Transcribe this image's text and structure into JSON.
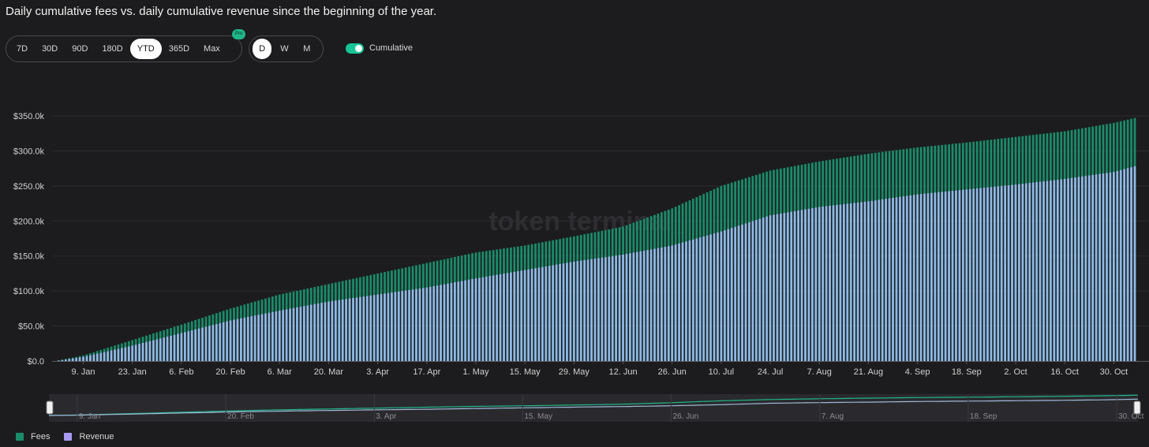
{
  "title": "Daily cumulative fees vs. daily cumulative revenue since the beginning of the year.",
  "controls": {
    "ranges": [
      "7D",
      "30D",
      "90D",
      "180D",
      "YTD",
      "365D",
      "Max"
    ],
    "active_range": "YTD",
    "pro_badge": "Pro",
    "intervals": [
      "D",
      "W",
      "M"
    ],
    "active_interval": "D",
    "cumulative_label": "Cumulative",
    "cumulative_on": true
  },
  "watermark": "token terminal_",
  "colors": {
    "fees": "#1a8c6a",
    "revenue": "#8fb8e6",
    "legend_revenue": "#a89af0",
    "grid": "#2d2d31",
    "navigator_fees": "#1fb589",
    "navigator_revenue": "#9fb8d8"
  },
  "chart_data": {
    "type": "bar",
    "stacked": false,
    "x_type": "date",
    "x_start": "2023-01-01",
    "x_end": "2023-11-05",
    "xlim": [
      "2023-01-01",
      "2023-11-05"
    ],
    "ylim": [
      0,
      350000
    ],
    "y_ticks": [
      0,
      50000,
      100000,
      150000,
      200000,
      250000,
      300000,
      350000
    ],
    "y_tick_labels": [
      "$0.0",
      "$50.0k",
      "$100.0k",
      "$150.0k",
      "$200.0k",
      "$250.0k",
      "$300.0k",
      "$350.0k"
    ],
    "x_ticks": [
      "2023-01-09",
      "2023-01-23",
      "2023-02-06",
      "2023-02-20",
      "2023-03-06",
      "2023-03-20",
      "2023-04-03",
      "2023-04-17",
      "2023-05-01",
      "2023-05-15",
      "2023-05-29",
      "2023-06-12",
      "2023-06-26",
      "2023-07-10",
      "2023-07-24",
      "2023-08-07",
      "2023-08-21",
      "2023-09-04",
      "2023-09-18",
      "2023-10-02",
      "2023-10-16",
      "2023-10-30"
    ],
    "x_tick_labels": [
      "9. Jan",
      "23. Jan",
      "6. Feb",
      "20. Feb",
      "6. Mar",
      "20. Mar",
      "3. Apr",
      "17. Apr",
      "1. May",
      "15. May",
      "29. May",
      "12. Jun",
      "26. Jun",
      "10. Jul",
      "24. Jul",
      "7. Aug",
      "21. Aug",
      "4. Sep",
      "18. Sep",
      "2. Oct",
      "16. Oct",
      "30. Oct"
    ],
    "grid": true,
    "series": [
      {
        "name": "Fees",
        "key_dates": [
          "2023-01-01",
          "2023-01-09",
          "2023-01-23",
          "2023-02-06",
          "2023-02-20",
          "2023-03-06",
          "2023-03-20",
          "2023-04-03",
          "2023-04-17",
          "2023-05-01",
          "2023-05-15",
          "2023-05-29",
          "2023-06-12",
          "2023-06-26",
          "2023-07-10",
          "2023-07-24",
          "2023-08-07",
          "2023-08-21",
          "2023-09-04",
          "2023-09-18",
          "2023-10-02",
          "2023-10-16",
          "2023-10-30",
          "2023-11-05"
        ],
        "key_values": [
          0,
          8000,
          30000,
          52000,
          75000,
          95000,
          110000,
          125000,
          140000,
          155000,
          165000,
          178000,
          192000,
          218000,
          250000,
          272000,
          285000,
          296000,
          305000,
          312000,
          320000,
          328000,
          340000,
          347000
        ]
      },
      {
        "name": "Revenue",
        "key_dates": [
          "2023-01-01",
          "2023-01-09",
          "2023-01-23",
          "2023-02-06",
          "2023-02-20",
          "2023-03-06",
          "2023-03-20",
          "2023-04-03",
          "2023-04-17",
          "2023-05-01",
          "2023-05-15",
          "2023-05-29",
          "2023-06-12",
          "2023-06-26",
          "2023-07-10",
          "2023-07-24",
          "2023-08-07",
          "2023-08-21",
          "2023-09-04",
          "2023-09-18",
          "2023-10-02",
          "2023-10-16",
          "2023-10-30",
          "2023-11-05"
        ],
        "key_values": [
          0,
          6000,
          22000,
          40000,
          58000,
          72000,
          85000,
          95000,
          105000,
          118000,
          130000,
          142000,
          152000,
          165000,
          185000,
          208000,
          220000,
          228000,
          238000,
          245000,
          252000,
          260000,
          270000,
          278000
        ]
      }
    ],
    "legend": [
      "Fees",
      "Revenue"
    ],
    "legend_position": "bottom-left",
    "navigator_tick_labels": [
      "9. Jan",
      "20. Feb",
      "3. Apr",
      "15. May",
      "26. Jun",
      "7. Aug",
      "18. Sep",
      "30. Oct"
    ]
  }
}
